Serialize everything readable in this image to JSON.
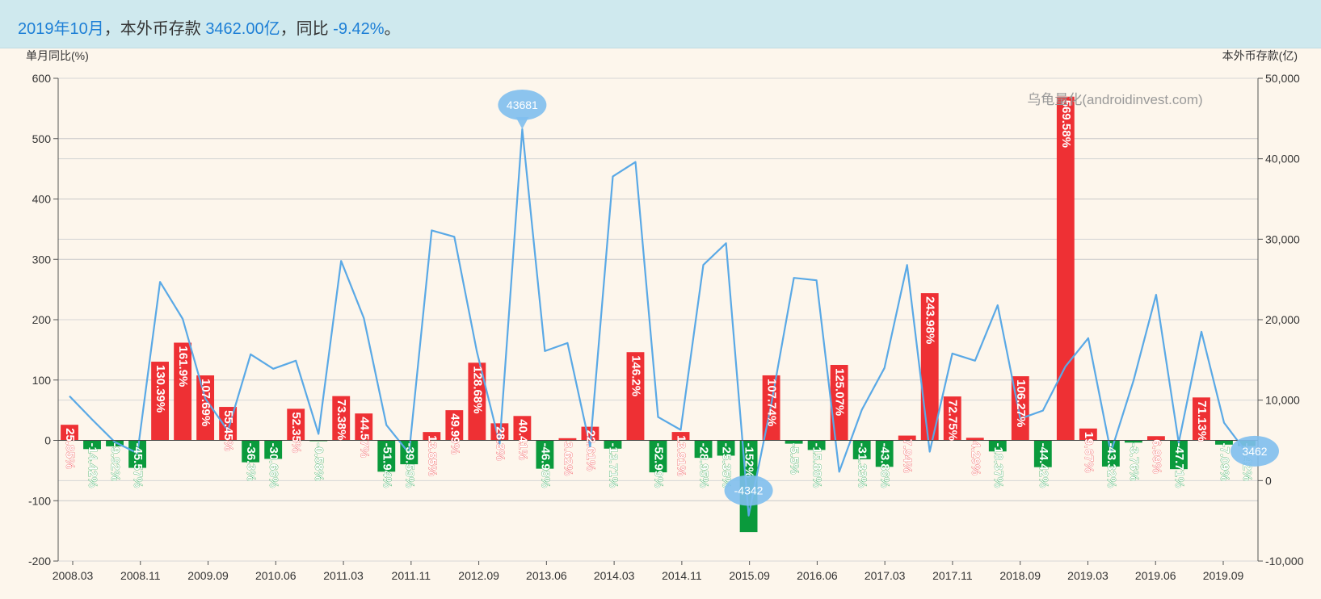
{
  "header": {
    "date": "2019年10月",
    "sep1": "，",
    "label": "本外币存款 ",
    "amount": "3462.00亿",
    "sep2": "，",
    "yoy_label": "同比 ",
    "yoy_value": "-9.42%",
    "end": "。"
  },
  "colors": {
    "positive": "#ee3034",
    "negative": "#0a9a3c",
    "line": "#5aa9e6",
    "marker": "#7fbfee",
    "background": "#fdf6ec",
    "header_bg": "#cfe9ee"
  },
  "chart_data": {
    "type": "bar+line",
    "left_axis_title": "单月同比(%)",
    "right_axis_title": "本外币存款(亿)",
    "watermark": "乌龟量化(androidinvest.com)",
    "ylim_left": [
      -200,
      600
    ],
    "yticks_left": [
      -200,
      -100,
      0,
      100,
      200,
      300,
      400,
      500,
      600
    ],
    "ylim_right": [
      -10000,
      50000
    ],
    "yticks_right": [
      -10000,
      0,
      10000,
      20000,
      30000,
      40000,
      50000
    ],
    "yticks_right_labels": [
      "-10,000",
      "0",
      "10,000",
      "20,000",
      "30,000",
      "40,000",
      "50,000"
    ],
    "grid": true,
    "x_tick_labels": [
      "2008.03",
      "2008.11",
      "2009.09",
      "2010.06",
      "2011.03",
      "2011.11",
      "2012.09",
      "2013.06",
      "2014.03",
      "2014.11",
      "2015.09",
      "2016.06",
      "2017.03",
      "2017.11",
      "2018.09",
      "2019.03",
      "2019.06",
      "2019.09"
    ],
    "series": [
      {
        "name": "单月同比(%)",
        "type": "bar",
        "labels": [
          "25.85%",
          "-14.42%",
          "-9.92%",
          "-45.57%",
          "130.39%",
          "161.9%",
          "107.69%",
          "55.45%",
          "-36.3%",
          "-30.66%",
          "52.35%",
          "-0.58%",
          "73.38%",
          "44.57%",
          "-51.94%",
          "-39.59%",
          "13.85%",
          "49.99%",
          "128.68%",
          "28.3%",
          "40.41%",
          "-46.98%",
          "3.62%",
          "22.61%",
          "-13.71%",
          "146.2%",
          "-52.99%",
          "13.91%",
          "-28.95%",
          "-25.35%",
          "-152%",
          "107.74%",
          "-5.5%",
          "-15.88%",
          "125.07%",
          "-31.33%",
          "-43.86%",
          "7.94%",
          "243.98%",
          "72.75%",
          "4.29%",
          "-18.37%",
          "106.27%",
          "-44.42%",
          "569.58%",
          "19.67%",
          "-43.32%",
          "-3.76%",
          "6.99%",
          "-47.71%",
          "71.13%",
          "-7.09%",
          "-9.42%"
        ],
        "values": [
          25.85,
          -14.42,
          -9.92,
          -45.57,
          130.39,
          161.9,
          107.69,
          55.45,
          -36.3,
          -30.66,
          52.35,
          -0.58,
          73.38,
          44.57,
          -51.94,
          -39.59,
          13.85,
          49.99,
          128.68,
          28.3,
          40.41,
          -46.98,
          3.62,
          22.61,
          -13.71,
          146.2,
          -52.99,
          13.91,
          -28.95,
          -25.35,
          -152,
          107.74,
          -5.5,
          -15.88,
          125.07,
          -31.33,
          -43.86,
          7.94,
          243.98,
          72.75,
          4.29,
          -18.37,
          106.27,
          -44.42,
          569.58,
          19.67,
          -43.32,
          -3.76,
          6.99,
          -47.71,
          71.13,
          -7.09,
          -9.42
        ]
      },
      {
        "name": "本外币存款(亿)",
        "type": "line",
        "values": [
          10500,
          7600,
          4800,
          3400,
          24700,
          20100,
          10200,
          6200,
          15700,
          13900,
          14900,
          5800,
          27300,
          20200,
          6900,
          3400,
          31100,
          30300,
          16000,
          4600,
          43681,
          16100,
          17100,
          4200,
          37800,
          39600,
          7900,
          6300,
          26800,
          29500,
          -4342,
          9500,
          25200,
          24900,
          1100,
          8800,
          14000,
          26800,
          3600,
          15800,
          14900,
          21800,
          7700,
          8700,
          14200,
          17700,
          3500,
          12400,
          23100,
          4700,
          18500,
          7200,
          3462
        ]
      }
    ],
    "markers": [
      {
        "label": "43681",
        "index": 20,
        "value": 43681
      },
      {
        "label": "-4342",
        "index": 30,
        "value": -4342
      },
      {
        "label": "3462",
        "index": 52,
        "value": 3462
      }
    ]
  }
}
